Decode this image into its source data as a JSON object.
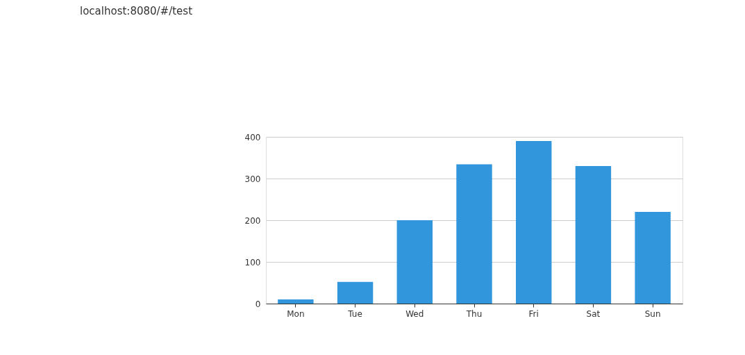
{
  "chart_data": {
    "type": "bar",
    "categories": [
      "Mon",
      "Tue",
      "Wed",
      "Thu",
      "Fri",
      "Sat",
      "Sun"
    ],
    "values": [
      10,
      52,
      200,
      334,
      390,
      330,
      220
    ],
    "color": "#3296dc",
    "ylim": [
      0,
      400
    ],
    "yticks": [
      0,
      100,
      200,
      300,
      400
    ],
    "grid": "y",
    "annotations": [
      "localhost:8080/#/test"
    ]
  }
}
